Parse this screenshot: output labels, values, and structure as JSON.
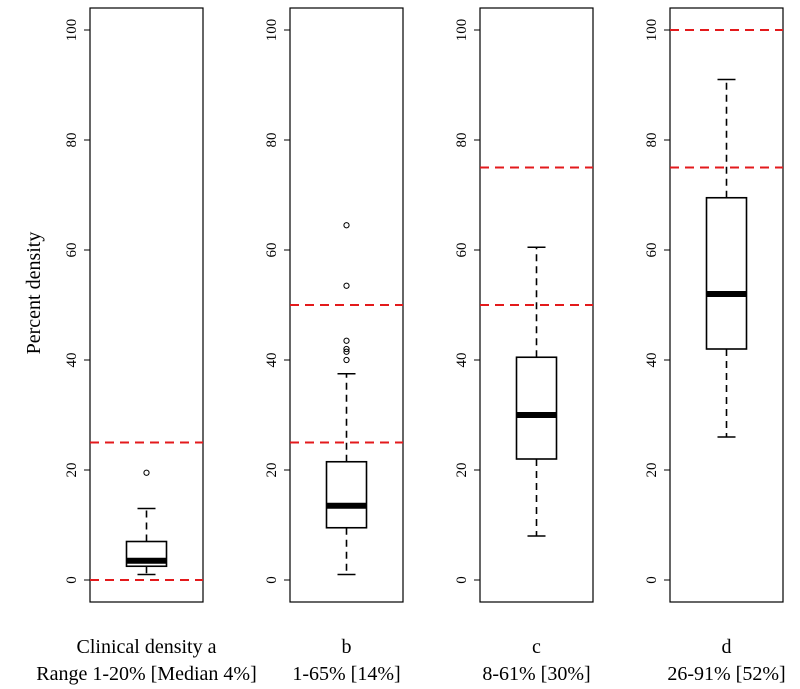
{
  "chart_data": {
    "type": "boxplot",
    "ylabel": "Percent density",
    "ylim": [
      0,
      100
    ],
    "yticks": [
      0,
      20,
      40,
      60,
      80,
      100
    ],
    "panels": [
      {
        "id": "a",
        "label": "Clinical density a",
        "range_label": "Range 1-20% [Median 4%]",
        "reference_lines": [
          0,
          25
        ],
        "whisker_low": 1,
        "q1": 2.5,
        "median": 3.5,
        "q3": 7,
        "whisker_high": 13,
        "outliers": [
          19.5
        ]
      },
      {
        "id": "b",
        "label": "b",
        "range_label": "1-65% [14%]",
        "reference_lines": [
          25,
          50
        ],
        "whisker_low": 1,
        "q1": 9.5,
        "median": 13.5,
        "q3": 21.5,
        "whisker_high": 37.5,
        "outliers": [
          40,
          41.5,
          42,
          43.5,
          53.5,
          64.5
        ]
      },
      {
        "id": "c",
        "label": "c",
        "range_label": "8-61% [30%]",
        "reference_lines": [
          50,
          75
        ],
        "whisker_low": 8,
        "q1": 22,
        "median": 30,
        "q3": 40.5,
        "whisker_high": 60.5,
        "outliers": []
      },
      {
        "id": "d",
        "label": "d",
        "range_label": "26-91% [52%]",
        "reference_lines": [
          75,
          100
        ],
        "whisker_low": 26,
        "q1": 42,
        "median": 52,
        "q3": 69.5,
        "whisker_high": 91,
        "outliers": []
      }
    ]
  }
}
